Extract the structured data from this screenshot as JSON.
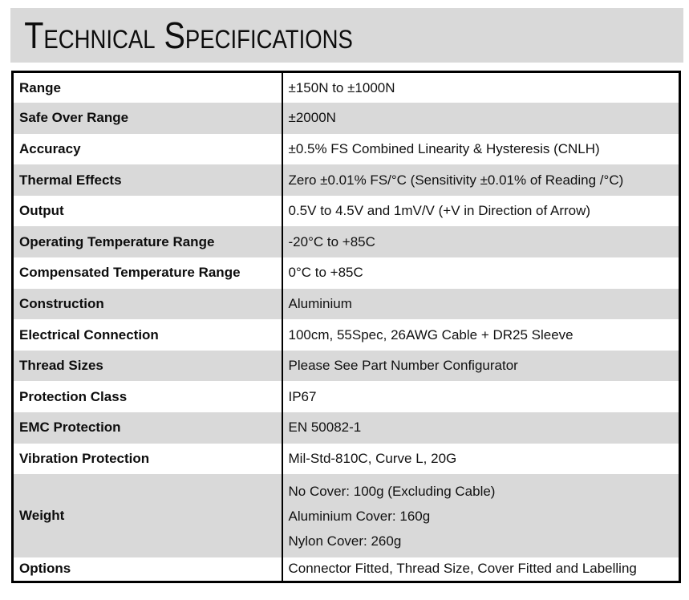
{
  "page": {
    "title": "Technical Specifications"
  },
  "colors": {
    "band_bg": "#d9d9d9",
    "alt_row_bg": "#d9d9d9",
    "border": "#000000",
    "text": "#111111"
  },
  "table": {
    "rows": [
      {
        "label": "Range",
        "value": "±150N to ±1000N"
      },
      {
        "label": "Safe Over Range",
        "value": "±2000N"
      },
      {
        "label": "Accuracy",
        "value": "±0.5% FS Combined Linearity & Hysteresis (CNLH)"
      },
      {
        "label": "Thermal Effects",
        "value": "Zero ±0.01% FS/°C (Sensitivity ±0.01% of Reading /°C)"
      },
      {
        "label": "Output",
        "value": "0.5V to 4.5V and 1mV/V (+V in Direction of Arrow)"
      },
      {
        "label": "Operating Temperature Range",
        "value": "-20°C to +85C"
      },
      {
        "label": "Compensated Temperature Range",
        "value": "0°C to +85C"
      },
      {
        "label": "Construction",
        "value": "Aluminium"
      },
      {
        "label": "Electrical Connection",
        "value": "100cm, 55Spec, 26AWG Cable + DR25 Sleeve"
      },
      {
        "label": "Thread Sizes",
        "value": "Please See Part Number Configurator"
      },
      {
        "label": "Protection Class",
        "value": "IP67"
      },
      {
        "label": "EMC Protection",
        "value": "EN 50082-1"
      },
      {
        "label": "Vibration Protection",
        "value": "Mil-Std-810C, Curve L, 20G"
      },
      {
        "label": "Weight",
        "lines": [
          "No Cover: 100g (Excluding Cable)",
          "Aluminium Cover: 160g",
          "Nylon Cover: 260g"
        ]
      },
      {
        "label": "Options",
        "value": "Connector Fitted, Thread Size, Cover Fitted and Labelling"
      }
    ]
  }
}
